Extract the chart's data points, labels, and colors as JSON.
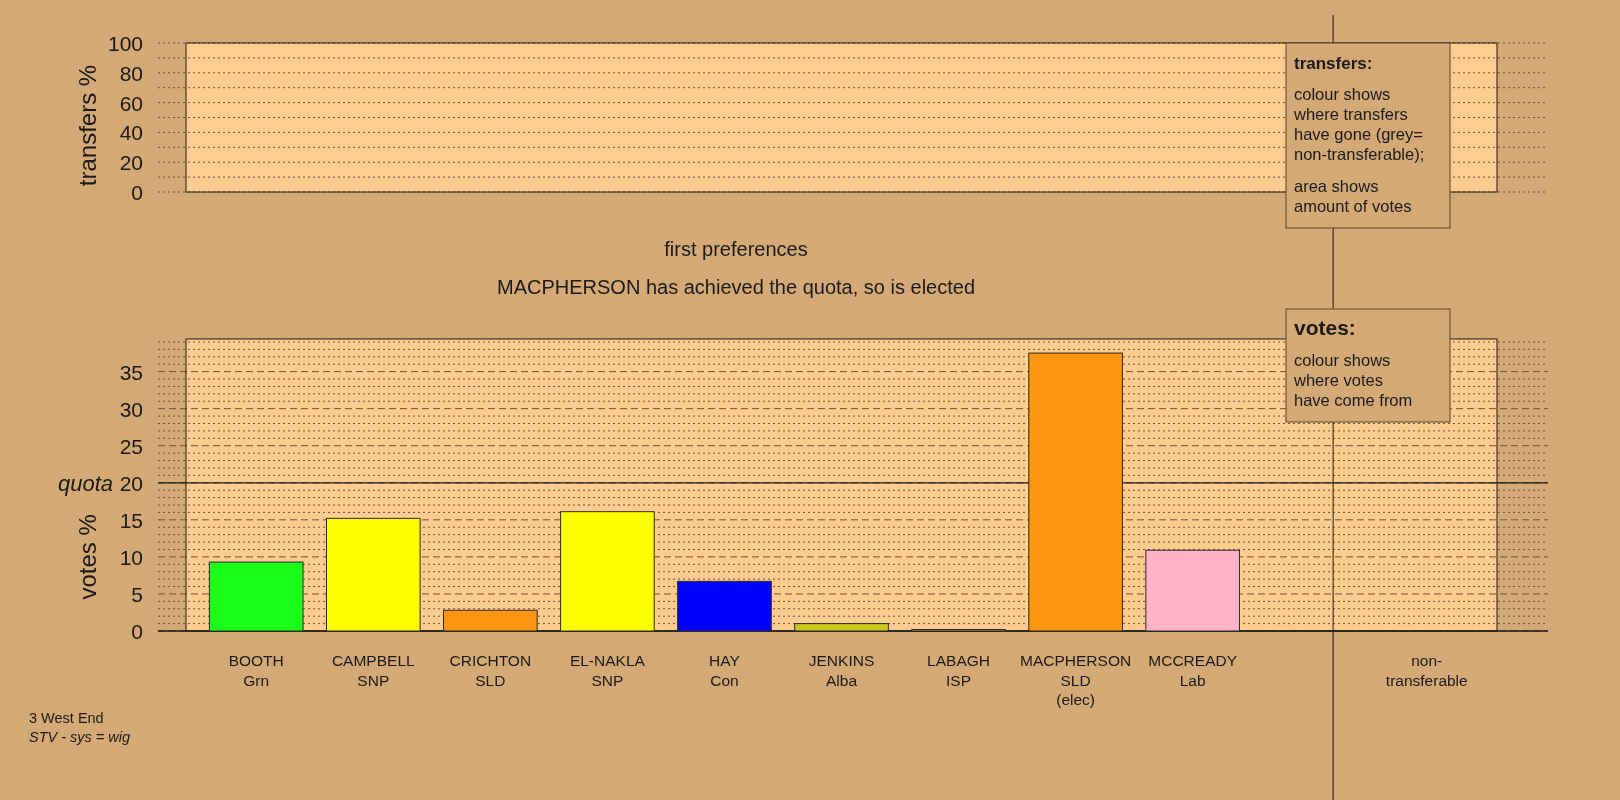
{
  "chart_data": [
    {
      "type": "bar",
      "ylabel": "transfers %",
      "categories": [
        null,
        null,
        null,
        null,
        null,
        null,
        null,
        null,
        null,
        null,
        null
      ],
      "values": [
        null,
        null,
        null,
        null,
        null,
        null,
        null,
        null,
        null,
        null,
        null
      ],
      "ylim": [
        0,
        100
      ],
      "yticks": [
        0,
        {
          "value": 10,
          "label": null
        },
        20,
        {
          "value": 30,
          "label": null
        },
        40,
        {
          "value": 50,
          "label": null
        },
        60,
        {
          "value": 70,
          "label": null
        },
        80,
        {
          "value": 90,
          "label": null
        },
        100
      ],
      "grid": "y",
      "tick_labels": "y",
      "annotations": [
        "transfers:",
        "colour shows\nwhere transfers\nhave gone (grey=\nnon-transferable);",
        "area shows\namount of votes"
      ]
    },
    {
      "type": "bar",
      "title": "first preferences",
      "subtitle": "MACPHERSON has achieved the quota, so is elected",
      "ylabel": "votes %",
      "categories": [
        "BOOTH\nGrn",
        "CAMPBELL\nSNP",
        "CRICHTON\nSLD",
        "EL-NAKLA\nSNP",
        "HAY\nCon",
        "JENKINS\nAlba",
        "LABAGH\nISP",
        "MACPHERSON\nSLD\n(elec)",
        "MCCREADY\nLab",
        null,
        "non-\ntransferable"
      ],
      "values": [
        9.3,
        15.2,
        2.8,
        16.1,
        6.7,
        1.0,
        0.2,
        37.5,
        10.9,
        null,
        null
      ],
      "colors": [
        "#1aff1a",
        "#ffff00",
        "#ff9410",
        "#ffff00",
        "#0000ff",
        "#c8c81a",
        "#c0b060",
        "#ff9410",
        "#ffb3c6",
        null,
        null
      ],
      "ylim": [
        0,
        39.4
      ],
      "yticks": [
        0,
        {
          "value": 1,
          "label": null
        },
        {
          "value": 2,
          "label": null
        },
        {
          "value": 3,
          "label": null
        },
        {
          "value": 4,
          "label": null
        },
        5,
        {
          "value": 6,
          "label": null
        },
        {
          "value": 7,
          "label": null
        },
        {
          "value": 8,
          "label": null
        },
        {
          "value": 9,
          "label": null
        },
        10,
        {
          "value": 11,
          "label": null
        },
        {
          "value": 12,
          "label": null
        },
        {
          "value": 13,
          "label": null
        },
        {
          "value": 14,
          "label": null
        },
        15,
        {
          "value": 16,
          "label": null
        },
        {
          "value": 17,
          "label": null
        },
        {
          "value": 18,
          "label": null
        },
        {
          "value": 19,
          "label": null
        },
        20,
        {
          "value": 21,
          "label": null
        },
        {
          "value": 22,
          "label": null
        },
        {
          "value": 23,
          "label": null
        },
        {
          "value": 24,
          "label": null
        },
        25,
        {
          "value": 26,
          "label": null
        },
        {
          "value": 27,
          "label": null
        },
        {
          "value": 28,
          "label": null
        },
        {
          "value": 29,
          "label": null
        },
        30,
        {
          "value": 31,
          "label": null
        },
        {
          "value": 32,
          "label": null
        },
        {
          "value": 33,
          "label": null
        },
        {
          "value": 34,
          "label": null
        },
        35,
        {
          "value": 36,
          "label": null
        },
        {
          "value": 37,
          "label": null
        },
        {
          "value": 38,
          "label": null
        },
        {
          "value": 39,
          "label": null
        }
      ],
      "grid": "y",
      "ref_lines": [
        {
          "axis": "y",
          "value": 20,
          "label": "quota",
          "color": "#1a1a1a",
          "line_style": "solid"
        }
      ],
      "annotations": [
        "votes:",
        "colour shows\nwhere votes\nhave come from",
        "3 West End",
        "STV - sys = wig"
      ]
    }
  ]
}
